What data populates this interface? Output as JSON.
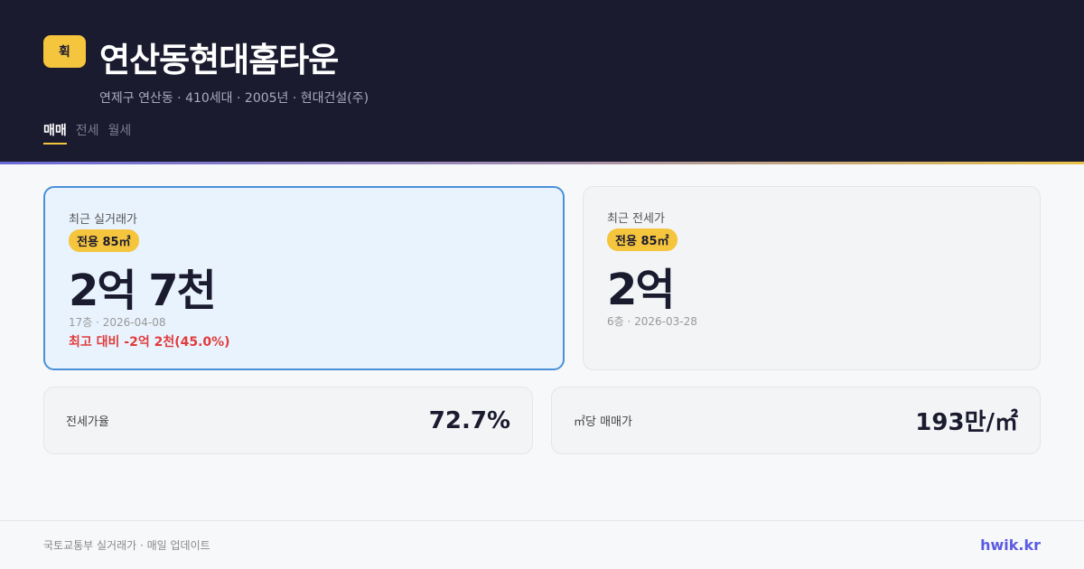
{
  "header": {
    "logo": "휙",
    "title": "연산동현대홈타운",
    "subtitle": "연제구 연산동 · 410세대 · 2005년 · 현대건설(주)",
    "tabs": [
      "매매",
      "전세",
      "월세"
    ],
    "active_tab": "매매"
  },
  "sale": {
    "label": "최근 실거래가",
    "area": "전용 85㎡",
    "price": "2억 7천",
    "meta": "17층 · 2026-04-08",
    "diff": "최고 대비 -2억 2천(45.0%)"
  },
  "jeonse": {
    "label": "최근 전세가",
    "area": "전용 85㎡",
    "price": "2억",
    "meta": "6층 · 2026-03-28"
  },
  "stats": [
    {
      "label": "전세가율",
      "value": "72.7%"
    },
    {
      "label": "㎡당 매매가",
      "value": "193만/㎡"
    }
  ],
  "footer": {
    "source": "국토교통부 실거래가 · 매일 업데이트",
    "brand": "hwik.kr"
  },
  "colors": {
    "header_bg": "#1b1b30",
    "accent": "#f5c53e",
    "highlight_border": "#4a90d9",
    "negative": "#e03c3c",
    "brand": "#5b5be0"
  }
}
